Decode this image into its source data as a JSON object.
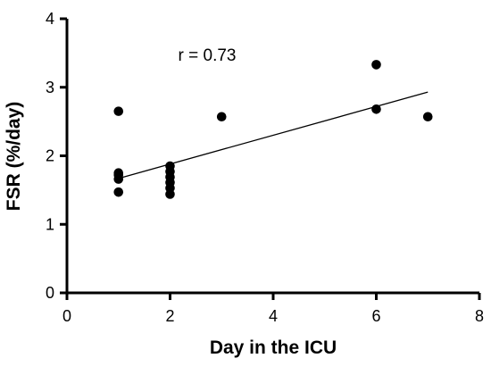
{
  "chart_data": {
    "type": "scatter",
    "title": "",
    "xlabel": "Day in the ICU",
    "ylabel": "FSR (%/day)",
    "xlim": [
      0,
      8
    ],
    "ylim": [
      0,
      4
    ],
    "xticks": [
      0,
      2,
      4,
      6,
      8
    ],
    "yticks": [
      0,
      1,
      2,
      3,
      4
    ],
    "grid": false,
    "legend": "none",
    "marker_color": "#000000",
    "annotation": "r = 0.73",
    "points": [
      {
        "x": 1,
        "y": 2.65
      },
      {
        "x": 1,
        "y": 1.75
      },
      {
        "x": 1,
        "y": 1.72
      },
      {
        "x": 1,
        "y": 1.66
      },
      {
        "x": 1,
        "y": 1.47
      },
      {
        "x": 2,
        "y": 1.85
      },
      {
        "x": 2,
        "y": 1.77
      },
      {
        "x": 2,
        "y": 1.69
      },
      {
        "x": 2,
        "y": 1.61
      },
      {
        "x": 2,
        "y": 1.53
      },
      {
        "x": 2,
        "y": 1.44
      },
      {
        "x": 3,
        "y": 2.57
      },
      {
        "x": 6,
        "y": 3.33
      },
      {
        "x": 6,
        "y": 2.68
      },
      {
        "x": 7,
        "y": 2.57
      }
    ],
    "trendline": [
      {
        "x": 1,
        "y": 1.67
      },
      {
        "x": 7,
        "y": 2.93
      }
    ]
  }
}
